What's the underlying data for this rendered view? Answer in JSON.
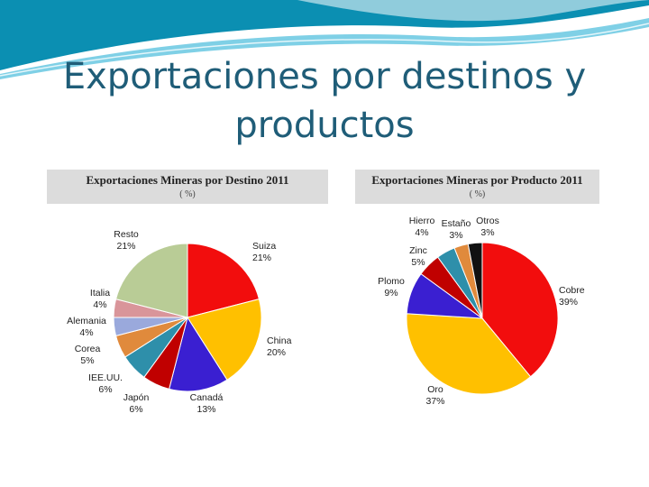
{
  "slide": {
    "title_line1": "Exportaciones por destinos y",
    "title_line2": "productos"
  },
  "colors": {
    "title": "#1f5d78",
    "wave_teal": "#0b8fb2",
    "wave_light": "#7fd0e6"
  },
  "chart_data": [
    {
      "type": "pie",
      "title": "Exportaciones Mineras por Destino 2011",
      "subtitle": "( %)",
      "slices": [
        {
          "label": "Suiza",
          "pct_label": "21%",
          "value": 21,
          "color": "#f20d0d"
        },
        {
          "label": "China",
          "pct_label": "20%",
          "value": 20,
          "color": "#ffc000"
        },
        {
          "label": "Canadá",
          "pct_label": "13%",
          "value": 13,
          "color": "#3a1fd1"
        },
        {
          "label": "Japón",
          "pct_label": "6%",
          "value": 6,
          "color": "#c00000"
        },
        {
          "label": "IEE.UU.",
          "pct_label": "6%",
          "value": 6,
          "color": "#2e8faa"
        },
        {
          "label": "Corea",
          "pct_label": "5%",
          "value": 5,
          "color": "#e08a3c"
        },
        {
          "label": "Alemania",
          "pct_label": "4%",
          "value": 4,
          "color": "#9aa9dc"
        },
        {
          "label": "Italia",
          "pct_label": "4%",
          "value": 4,
          "color": "#d9959a"
        },
        {
          "label": "Resto",
          "pct_label": "21%",
          "value": 21,
          "color": "#b9cc96"
        }
      ]
    },
    {
      "type": "pie",
      "title": "Exportaciones Mineras por Producto 2011",
      "subtitle": "( %)",
      "slices": [
        {
          "label": "Cobre",
          "pct_label": "39%",
          "value": 39,
          "color": "#f20d0d"
        },
        {
          "label": "Oro",
          "pct_label": "37%",
          "value": 37,
          "color": "#ffc000"
        },
        {
          "label": "Plomo",
          "pct_label": "9%",
          "value": 9,
          "color": "#3a1fd1"
        },
        {
          "label": "Zinc",
          "pct_label": "5%",
          "value": 5,
          "color": "#c00000"
        },
        {
          "label": "Hierro",
          "pct_label": "4%",
          "value": 4,
          "color": "#2e8faa"
        },
        {
          "label": "Estaño",
          "pct_label": "3%",
          "value": 3,
          "color": "#e08a3c"
        },
        {
          "label": "Otros",
          "pct_label": "3%",
          "value": 3,
          "color": "#111111"
        }
      ]
    }
  ]
}
